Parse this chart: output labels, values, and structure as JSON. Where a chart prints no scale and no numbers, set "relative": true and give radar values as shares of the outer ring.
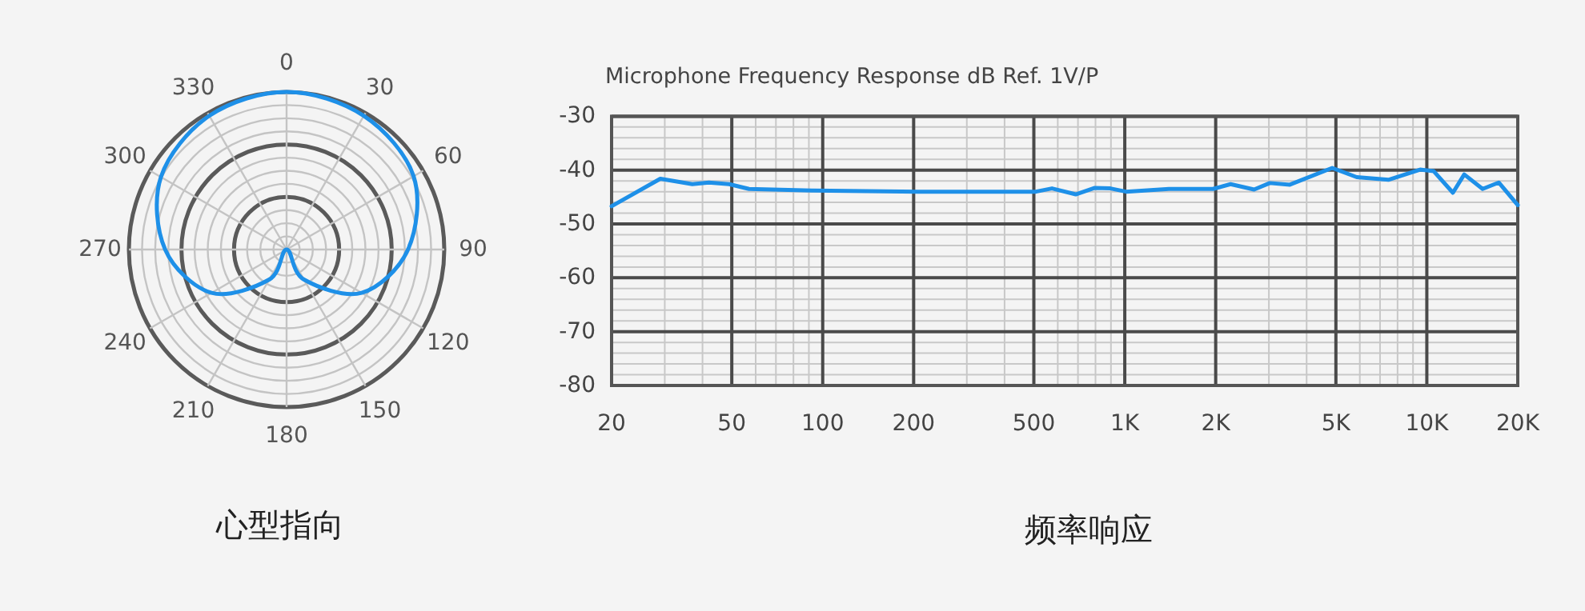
{
  "chart_data": [
    {
      "type": "radar",
      "categories": [
        "0",
        "30",
        "60",
        "90",
        "120",
        "150",
        "180",
        "210",
        "240",
        "270",
        "300",
        "330"
      ],
      "relative": true,
      "grid": true,
      "series": [
        {
          "color": "#1e90e8",
          "values": [
            1,
            0.98,
            0.93,
            0.77,
            0.55,
            0.22,
            0,
            0.22,
            0.55,
            0.77,
            0.92,
            0.98
          ]
        }
      ],
      "annotations": [
        "心型指向"
      ]
    },
    {
      "type": "line",
      "title": "Microphone Frequency Response dB Ref. 1V/P",
      "log": "x",
      "grid": true,
      "xlim": [
        20,
        20000
      ],
      "ylim": [
        -80,
        -30
      ],
      "xticks": [
        20,
        50,
        100,
        200,
        500,
        {
          "value": 1000,
          "label": "1K"
        },
        {
          "value": 2000,
          "label": "2K"
        },
        {
          "value": 5000,
          "label": "5K"
        },
        {
          "value": 10000,
          "label": "10K"
        },
        {
          "value": 20000,
          "label": "20K"
        }
      ],
      "yticks": [
        -30,
        -40,
        -50,
        -60,
        -70,
        -80
      ],
      "series": [
        {
          "color": "#1e90e8",
          "x": [
            20,
            29,
            37,
            42,
            49,
            57,
            92,
            208,
            508,
            574,
            688,
            796,
            896,
            1010,
            1400,
            1960,
            2240,
            2680,
            3020,
            3520,
            4860,
            5860,
            7460,
            9500,
            10540,
            12200,
            13300,
            15300,
            17300,
            20000
          ],
          "values": [
            -46.7,
            -41.6,
            -42.6,
            -42.3,
            -42.6,
            -43.5,
            -43.8,
            -44,
            -44,
            -43.4,
            -44.5,
            -43.3,
            -43.4,
            -44,
            -43.5,
            -43.5,
            -42.6,
            -43.6,
            -42.4,
            -42.7,
            -39.6,
            -41.3,
            -41.8,
            -39.9,
            -40.2,
            -44.2,
            -40.8,
            -43.5,
            -42.3,
            -46.5
          ]
        }
      ],
      "annotations": [
        "频率响应"
      ]
    }
  ]
}
